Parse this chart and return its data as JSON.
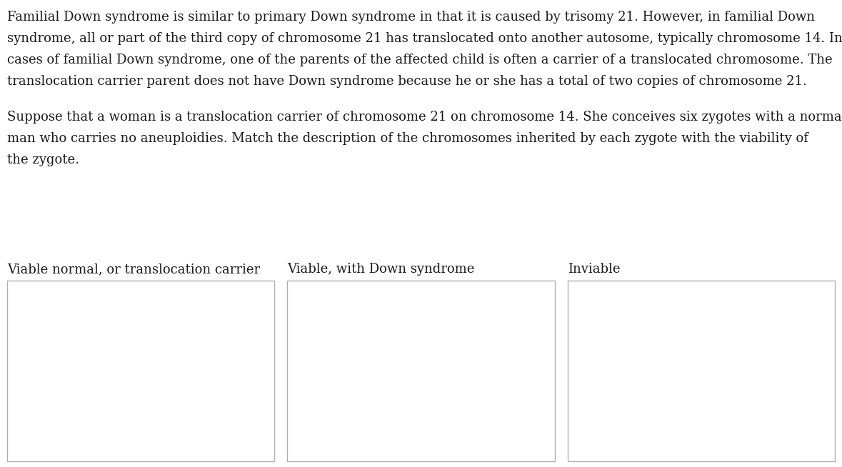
{
  "background_color": "#ffffff",
  "paragraph1_lines": [
    "Familial Down syndrome is similar to primary Down syndrome in that it is caused by trisomy 21. However, in familial Down",
    "syndrome, all or part of the third copy of chromosome 21 has translocated onto another autosome, typically chromosome 14. In",
    "cases of familial Down syndrome, one of the parents of the affected child is often a carrier of a translocated chromosome. The",
    "translocation carrier parent does not have Down syndrome because he or she has a total of two copies of chromosome 21."
  ],
  "paragraph2_lines": [
    "Suppose that a woman is a translocation carrier of chromosome 21 on chromosome 14. She conceives six zygotes with a normal",
    "man who carries no aneuploidies. Match the description of the chromosomes inherited by each zygote with the viability of",
    "the zygote."
  ],
  "box_labels": [
    "Viable normal, or translocation carrier",
    "Viable, with Down syndrome",
    "Inviable"
  ],
  "text_color": "#1a1a1a",
  "box_border_color": "#b0b0b0",
  "font_size_text": 13.0,
  "font_size_label": 13.0,
  "fig_width": 11.79,
  "fig_height": 6.54,
  "dpi": 100
}
